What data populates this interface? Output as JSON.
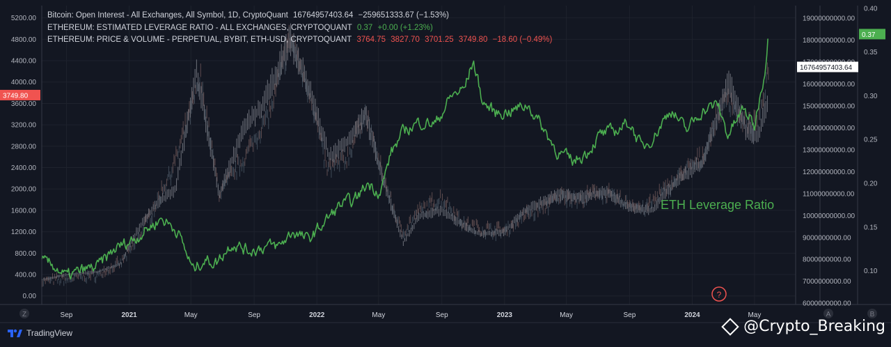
{
  "legend": {
    "line1": {
      "label": "Bitcoin: Open Interest - All Exchanges, All Symbol, 1D, CryptoQuant",
      "value": "16764957403.64",
      "change": "−259651333.67 (−1.53%)"
    },
    "line2": {
      "label": "ETHEREUM: ESTIMATED LEVERAGE RATIO - ALL EXCHANGES, CRYPTOQUANT",
      "value": "0.37",
      "change": "+0.00 (+1.23%)"
    },
    "line3": {
      "label": "ETHEREUM: PRICE & VOLUME - PERPETUAL, BYBIT, ETH-USD, CRYPTOQUANT",
      "o": "3764.75",
      "h": "3827.70",
      "l": "3701.25",
      "c": "3749.80",
      "change": "−18.60 (−0.49%)"
    }
  },
  "footer": {
    "brand": "TradingView",
    "watermark": "@Crypto_Breaking",
    "left_axis_button": "Z",
    "right_axis_button_a": "A",
    "right_axis_button_b": "B",
    "help_icon_text": "?"
  },
  "colors": {
    "background": "#131722",
    "leverage_line": "#4caf50",
    "candles": "#787b86",
    "price_badge": "#f05350",
    "oi_badge": "#ffffff",
    "lev_badge": "#4caf50"
  },
  "chart_data": {
    "type": "line",
    "annotation": "ETH Leverage Ratio",
    "x_tick_labels": [
      "Sep",
      "2021",
      "May",
      "Sep",
      "2022",
      "May",
      "Sep",
      "2023",
      "May",
      "Sep",
      "2024",
      "May"
    ],
    "x_tick_dates": [
      "2020-09-01",
      "2021-01-01",
      "2021-05-01",
      "2021-09-01",
      "2022-01-01",
      "2022-05-01",
      "2022-09-01",
      "2023-01-01",
      "2023-05-01",
      "2023-09-01",
      "2024-01-01",
      "2024-05-01"
    ],
    "x_range": [
      "2020-07-15",
      "2024-07-20"
    ],
    "axes": {
      "price_left": {
        "ylim": [
          -160,
          5430
        ],
        "ticks": [
          "0.00",
          "400.00",
          "800.00",
          "1200.00",
          "1600.00",
          "2000.00",
          "2400.00",
          "2800.00",
          "3200.00",
          "3600.00",
          "4000.00",
          "4400.00",
          "4800.00",
          "5200.00"
        ],
        "current_label": "3749.80"
      },
      "open_interest_right": {
        "ylim": [
          5940000000,
          19580000000
        ],
        "ticks": [
          "6000000000.00",
          "7000000000.00",
          "8000000000.00",
          "9000000000.00",
          "10000000000.00",
          "11000000000.00",
          "12000000000.00",
          "13000000000.00",
          "14000000000.00",
          "15000000000.00",
          "16000000000.00",
          "17000000000.00",
          "18000000000.00",
          "19000000000.00"
        ],
        "current_label": "16764957403.64"
      },
      "leverage_far_right": {
        "ylim": [
          0.0615,
          0.403
        ],
        "ticks": [
          "0.10",
          "0.15",
          "0.20",
          "0.25",
          "0.30",
          "0.35",
          "0.40"
        ],
        "current_label": "0.37"
      }
    },
    "series": [
      {
        "name": "ETHEREUM: ESTIMATED LEVERAGE RATIO - ALL EXCHANGES, CRYPTOQUANT",
        "axis": "leverage_far_right",
        "x": [
          "2020-07-15",
          "2020-08-10",
          "2020-09-01",
          "2020-10-01",
          "2020-11-01",
          "2020-12-05",
          "2021-01-15",
          "2021-02-10",
          "2021-03-05",
          "2021-04-05",
          "2021-05-05",
          "2021-05-25",
          "2021-06-20",
          "2021-07-20",
          "2021-08-20",
          "2021-09-25",
          "2021-10-20",
          "2021-11-15",
          "2021-12-15",
          "2022-01-15",
          "2022-02-15",
          "2022-03-15",
          "2022-04-10",
          "2022-05-05",
          "2022-05-25",
          "2022-06-20",
          "2022-07-20",
          "2022-08-20",
          "2022-09-20",
          "2022-10-15",
          "2022-11-01",
          "2022-11-20",
          "2022-12-15",
          "2023-01-15",
          "2023-02-15",
          "2023-03-15",
          "2023-04-15",
          "2023-05-15",
          "2023-06-10",
          "2023-07-05",
          "2023-08-05",
          "2023-09-01",
          "2023-09-25",
          "2023-10-20",
          "2023-11-20",
          "2023-12-20",
          "2024-01-20",
          "2024-02-20",
          "2024-03-10",
          "2024-04-10",
          "2024-05-01",
          "2024-05-10",
          "2024-05-20",
          "2024-05-28"
        ],
        "values": [
          0.11,
          0.105,
          0.093,
          0.1,
          0.105,
          0.125,
          0.138,
          0.15,
          0.16,
          0.146,
          0.101,
          0.112,
          0.11,
          0.132,
          0.123,
          0.128,
          0.128,
          0.145,
          0.135,
          0.155,
          0.175,
          0.18,
          0.2,
          0.19,
          0.235,
          0.26,
          0.27,
          0.268,
          0.3,
          0.308,
          0.34,
          0.292,
          0.28,
          0.283,
          0.29,
          0.265,
          0.235,
          0.225,
          0.235,
          0.255,
          0.26,
          0.27,
          0.24,
          0.255,
          0.285,
          0.26,
          0.283,
          0.29,
          0.255,
          0.285,
          0.265,
          0.295,
          0.325,
          0.37
        ]
      },
      {
        "name": "Bitcoin: Open Interest - All Exchanges, All Symbol, 1D, CryptoQuant",
        "axis": "open_interest_right",
        "x": [
          "2020-07-15",
          "2020-09-01",
          "2020-11-01",
          "2020-12-15",
          "2021-01-15",
          "2021-02-20",
          "2021-04-01",
          "2021-05-20",
          "2021-06-25",
          "2021-08-15",
          "2021-10-05",
          "2021-11-10",
          "2021-12-20",
          "2022-01-20",
          "2022-03-01",
          "2022-04-05",
          "2022-05-05",
          "2022-06-15",
          "2022-07-20",
          "2022-09-01",
          "2022-10-15",
          "2022-11-15",
          "2023-01-01",
          "2023-02-10",
          "2023-03-20",
          "2023-04-20",
          "2023-06-01",
          "2023-07-01",
          "2023-08-15",
          "2023-10-01",
          "2023-11-10",
          "2023-12-15",
          "2024-01-20",
          "2024-02-20",
          "2024-03-10",
          "2024-04-15",
          "2024-05-10",
          "2024-05-28"
        ],
        "values": [
          7000000000,
          7100000000,
          7300000000,
          7800000000,
          8800000000,
          10400000000,
          12500000000,
          16200000000,
          11000000000,
          12700000000,
          14900000000,
          18100000000,
          15500000000,
          12100000000,
          12600000000,
          14700000000,
          12100000000,
          9200000000,
          10200000000,
          10800000000,
          9600000000,
          9400000000,
          9300000000,
          10000000000,
          10400000000,
          10900000000,
          10700000000,
          11100000000,
          10700000000,
          10300000000,
          11200000000,
          12000000000,
          12600000000,
          14500000000,
          15400000000,
          14000000000,
          14200000000,
          16764957403.64
        ]
      },
      {
        "name": "ETHEREUM: PRICE & VOLUME - PERPETUAL, BYBIT, ETH-USD, CRYPTOQUANT",
        "axis": "price_left",
        "x": [
          "2020-07-15",
          "2020-09-01",
          "2020-11-01",
          "2020-12-15",
          "2021-01-15",
          "2021-02-20",
          "2021-04-01",
          "2021-05-12",
          "2021-06-25",
          "2021-08-15",
          "2021-09-15",
          "2021-11-10",
          "2021-12-20",
          "2022-01-25",
          "2022-03-01",
          "2022-04-05",
          "2022-05-15",
          "2022-06-18",
          "2022-07-20",
          "2022-09-01",
          "2022-10-15",
          "2022-11-15",
          "2023-01-01",
          "2023-02-10",
          "2023-04-15",
          "2023-06-01",
          "2023-07-15",
          "2023-09-01",
          "2023-10-15",
          "2023-11-15",
          "2023-12-15",
          "2024-01-20",
          "2024-03-12",
          "2024-04-15",
          "2024-05-10",
          "2024-05-28"
        ],
        "values": [
          300,
          400,
          450,
          600,
          1200,
          1700,
          2000,
          4200,
          1900,
          3200,
          3500,
          4800,
          3800,
          2600,
          2900,
          3400,
          2000,
          1000,
          1500,
          1600,
          1300,
          1150,
          1200,
          1600,
          1900,
          1850,
          1950,
          1650,
          1600,
          2000,
          2250,
          2500,
          4000,
          3100,
          3000,
          3749.8
        ]
      }
    ]
  }
}
